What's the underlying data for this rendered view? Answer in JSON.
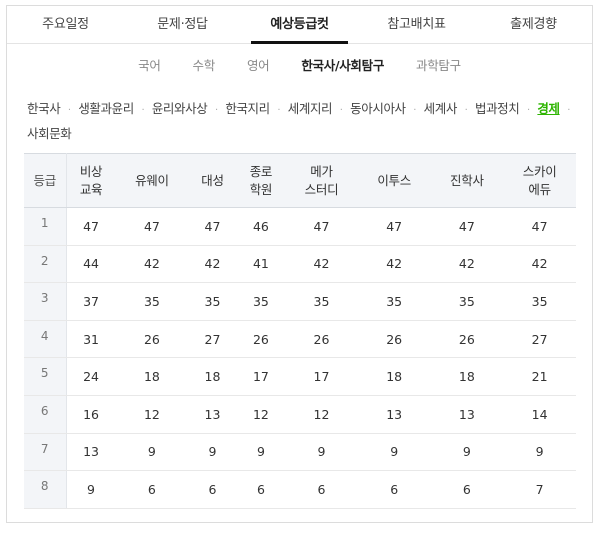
{
  "main_tabs": [
    {
      "label": "주요일정",
      "active": false
    },
    {
      "label": "문제·정답",
      "active": false
    },
    {
      "label": "예상등급컷",
      "active": true
    },
    {
      "label": "참고배치표",
      "active": false
    },
    {
      "label": "출제경향",
      "active": false
    }
  ],
  "sub_tabs": [
    {
      "label": "국어",
      "active": false
    },
    {
      "label": "수학",
      "active": false
    },
    {
      "label": "영어",
      "active": false
    },
    {
      "label": "한국사/사회탐구",
      "active": true
    },
    {
      "label": "과학탐구",
      "active": false
    }
  ],
  "subjects": [
    {
      "label": "한국사",
      "active": false
    },
    {
      "label": "생활과윤리",
      "active": false
    },
    {
      "label": "윤리와사상",
      "active": false
    },
    {
      "label": "한국지리",
      "active": false
    },
    {
      "label": "세계지리",
      "active": false
    },
    {
      "label": "동아시아사",
      "active": false
    },
    {
      "label": "세계사",
      "active": false
    },
    {
      "label": "법과정치",
      "active": false
    },
    {
      "label": "경제",
      "active": true
    },
    {
      "label": "사회문화",
      "active": false
    }
  ],
  "separator": "·",
  "table": {
    "grade_header": "등급",
    "columns": [
      [
        "비상",
        "교육"
      ],
      [
        "유웨이"
      ],
      [
        "대성"
      ],
      [
        "종로",
        "학원"
      ],
      [
        "메가",
        "스터디"
      ],
      [
        "이투스"
      ],
      [
        "진학사"
      ],
      [
        "스카이",
        "에듀"
      ]
    ],
    "rows": [
      {
        "grade": "1",
        "values": [
          "47",
          "47",
          "47",
          "46",
          "47",
          "47",
          "47",
          "47"
        ]
      },
      {
        "grade": "2",
        "values": [
          "44",
          "42",
          "42",
          "41",
          "42",
          "42",
          "42",
          "42"
        ]
      },
      {
        "grade": "3",
        "values": [
          "37",
          "35",
          "35",
          "35",
          "35",
          "35",
          "35",
          "35"
        ]
      },
      {
        "grade": "4",
        "values": [
          "31",
          "26",
          "27",
          "26",
          "26",
          "26",
          "26",
          "27"
        ]
      },
      {
        "grade": "5",
        "values": [
          "24",
          "18",
          "18",
          "17",
          "17",
          "18",
          "18",
          "21"
        ]
      },
      {
        "grade": "6",
        "values": [
          "16",
          "12",
          "13",
          "12",
          "12",
          "13",
          "13",
          "14"
        ]
      },
      {
        "grade": "7",
        "values": [
          "13",
          "9",
          "9",
          "9",
          "9",
          "9",
          "9",
          "9"
        ]
      },
      {
        "grade": "8",
        "values": [
          "9",
          "6",
          "6",
          "6",
          "6",
          "6",
          "6",
          "7"
        ]
      }
    ]
  }
}
